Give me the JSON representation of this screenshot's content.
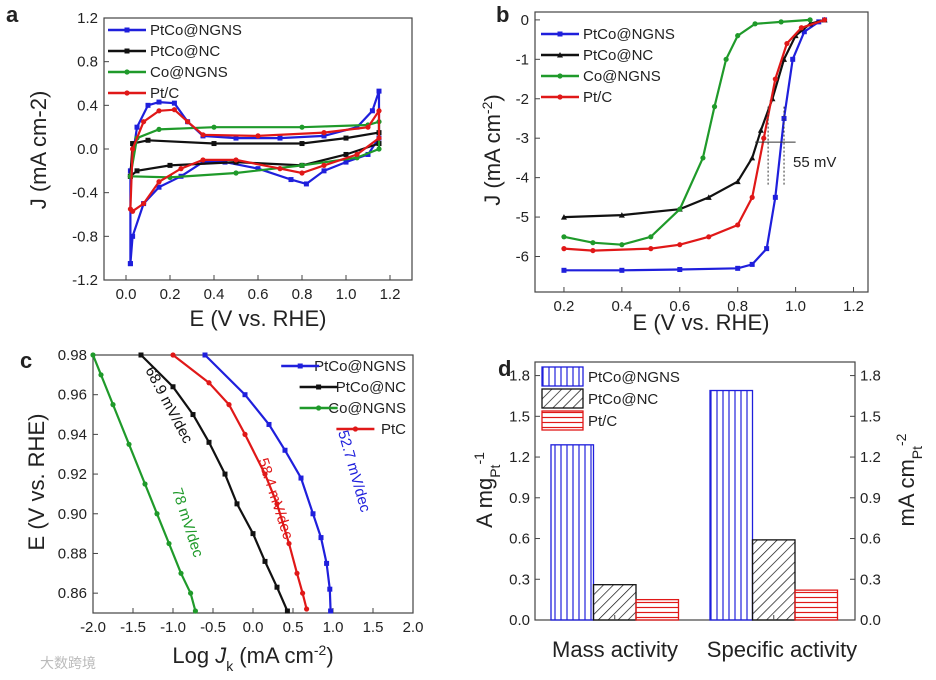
{
  "watermark": "大数跨境",
  "chart_data": [
    {
      "panel": "a",
      "type": "line",
      "xlabel": "E (V vs. RHE)",
      "ylabel": "J (mA cm-2)",
      "ylabel_parts": [
        "J (mA cm",
        "-2",
        ")"
      ],
      "xlim": [
        -0.1,
        1.3
      ],
      "ylim": [
        -1.2,
        1.2
      ],
      "xticks": [
        0.0,
        0.2,
        0.4,
        0.6,
        0.8,
        1.0,
        1.2
      ],
      "xtick_labels": [
        "0.0",
        "0.2",
        "0.4",
        "0.6",
        "0.8",
        "1.0",
        "1.2"
      ],
      "yticks": [
        -1.2,
        -0.8,
        -0.4,
        0.0,
        0.4,
        0.8,
        1.2
      ],
      "ytick_labels": [
        "-1.2",
        "-0.8",
        "-0.4",
        "0.0",
        "0.4",
        "0.8",
        "1.2"
      ],
      "legend": "top-left",
      "series": [
        {
          "name": "PtCo@NGNS",
          "color": "#1f1fdc",
          "marker": "square",
          "points": [
            [
              0.02,
              -1.05
            ],
            [
              0.02,
              -0.2
            ],
            [
              0.05,
              0.2
            ],
            [
              0.1,
              0.4
            ],
            [
              0.15,
              0.43
            ],
            [
              0.22,
              0.42
            ],
            [
              0.28,
              0.25
            ],
            [
              0.35,
              0.12
            ],
            [
              0.5,
              0.1
            ],
            [
              0.7,
              0.1
            ],
            [
              0.9,
              0.12
            ],
            [
              1.05,
              0.2
            ],
            [
              1.12,
              0.35
            ],
            [
              1.15,
              0.53
            ],
            [
              1.15,
              0.1
            ],
            [
              1.1,
              -0.05
            ],
            [
              1.0,
              -0.12
            ],
            [
              0.9,
              -0.2
            ],
            [
              0.82,
              -0.32
            ],
            [
              0.75,
              -0.28
            ],
            [
              0.6,
              -0.18
            ],
            [
              0.45,
              -0.12
            ],
            [
              0.35,
              -0.12
            ],
            [
              0.25,
              -0.25
            ],
            [
              0.15,
              -0.35
            ],
            [
              0.08,
              -0.5
            ],
            [
              0.03,
              -0.8
            ],
            [
              0.02,
              -1.05
            ]
          ]
        },
        {
          "name": "PtCo@NC",
          "color": "#111111",
          "marker": "square",
          "points": [
            [
              0.02,
              -0.25
            ],
            [
              0.03,
              0.05
            ],
            [
              0.1,
              0.08
            ],
            [
              0.4,
              0.05
            ],
            [
              0.8,
              0.05
            ],
            [
              1.0,
              0.1
            ],
            [
              1.15,
              0.15
            ],
            [
              1.15,
              0.05
            ],
            [
              1.0,
              -0.05
            ],
            [
              0.8,
              -0.15
            ],
            [
              0.5,
              -0.12
            ],
            [
              0.2,
              -0.15
            ],
            [
              0.05,
              -0.2
            ],
            [
              0.02,
              -0.25
            ]
          ]
        },
        {
          "name": "Co@NGNS",
          "color": "#1f9a2a",
          "marker": "circle",
          "points": [
            [
              0.02,
              -0.25
            ],
            [
              0.05,
              0.1
            ],
            [
              0.15,
              0.18
            ],
            [
              0.4,
              0.2
            ],
            [
              0.8,
              0.2
            ],
            [
              1.1,
              0.22
            ],
            [
              1.15,
              0.25
            ],
            [
              1.15,
              0.0
            ],
            [
              1.05,
              -0.08
            ],
            [
              0.8,
              -0.15
            ],
            [
              0.5,
              -0.22
            ],
            [
              0.2,
              -0.26
            ],
            [
              0.02,
              -0.25
            ]
          ]
        },
        {
          "name": "Pt/C",
          "color": "#e01818",
          "marker": "circle",
          "points": [
            [
              0.02,
              -0.55
            ],
            [
              0.03,
              0.0
            ],
            [
              0.08,
              0.25
            ],
            [
              0.15,
              0.35
            ],
            [
              0.22,
              0.36
            ],
            [
              0.28,
              0.25
            ],
            [
              0.35,
              0.13
            ],
            [
              0.6,
              0.12
            ],
            [
              0.9,
              0.15
            ],
            [
              1.1,
              0.2
            ],
            [
              1.15,
              0.35
            ],
            [
              1.15,
              0.1
            ],
            [
              1.05,
              -0.05
            ],
            [
              0.9,
              -0.15
            ],
            [
              0.8,
              -0.22
            ],
            [
              0.7,
              -0.18
            ],
            [
              0.5,
              -0.1
            ],
            [
              0.35,
              -0.1
            ],
            [
              0.25,
              -0.18
            ],
            [
              0.15,
              -0.3
            ],
            [
              0.08,
              -0.5
            ],
            [
              0.03,
              -0.57
            ]
          ]
        }
      ]
    },
    {
      "panel": "b",
      "type": "line",
      "xlabel": "E (V vs. RHE)",
      "ylabel_parts": [
        "J (mA cm",
        "-2",
        ")"
      ],
      "xlim": [
        0.1,
        1.25
      ],
      "ylim": [
        -6.9,
        0.2
      ],
      "xticks": [
        0.2,
        0.4,
        0.6,
        0.8,
        1.0,
        1.2
      ],
      "xtick_labels": [
        "0.2",
        "0.4",
        "0.6",
        "0.8",
        "1.0",
        "1.2"
      ],
      "yticks": [
        0,
        -1,
        -2,
        -3,
        -4,
        -5,
        -6
      ],
      "ytick_labels": [
        "0",
        "-1",
        "-2",
        "-3",
        "-4",
        "-5",
        "-6"
      ],
      "legend": "top-left",
      "annotation": "55 mV",
      "series": [
        {
          "name": "PtCo@NGNS",
          "color": "#1f1fdc",
          "marker": "square",
          "points": [
            [
              0.2,
              -6.35
            ],
            [
              0.4,
              -6.35
            ],
            [
              0.6,
              -6.33
            ],
            [
              0.8,
              -6.3
            ],
            [
              0.85,
              -6.2
            ],
            [
              0.9,
              -5.8
            ],
            [
              0.93,
              -4.5
            ],
            [
              0.96,
              -2.5
            ],
            [
              0.99,
              -1.0
            ],
            [
              1.03,
              -0.3
            ],
            [
              1.08,
              -0.05
            ],
            [
              1.1,
              0
            ]
          ]
        },
        {
          "name": "PtCo@NC",
          "color": "#111111",
          "marker": "triangle",
          "points": [
            [
              0.2,
              -5.0
            ],
            [
              0.4,
              -4.95
            ],
            [
              0.6,
              -4.8
            ],
            [
              0.7,
              -4.5
            ],
            [
              0.8,
              -4.1
            ],
            [
              0.85,
              -3.5
            ],
            [
              0.88,
              -2.8
            ],
            [
              0.92,
              -2.0
            ],
            [
              0.96,
              -1.0
            ],
            [
              1.0,
              -0.4
            ],
            [
              1.05,
              -0.1
            ],
            [
              1.1,
              0
            ]
          ]
        },
        {
          "name": "Co@NGNS",
          "color": "#1f9a2a",
          "marker": "circle",
          "points": [
            [
              0.2,
              -5.5
            ],
            [
              0.3,
              -5.65
            ],
            [
              0.4,
              -5.7
            ],
            [
              0.5,
              -5.5
            ],
            [
              0.6,
              -4.8
            ],
            [
              0.68,
              -3.5
            ],
            [
              0.72,
              -2.2
            ],
            [
              0.76,
              -1.0
            ],
            [
              0.8,
              -0.4
            ],
            [
              0.86,
              -0.1
            ],
            [
              0.95,
              -0.05
            ],
            [
              1.05,
              0
            ]
          ]
        },
        {
          "name": "Pt/C",
          "color": "#e01818",
          "marker": "circle",
          "points": [
            [
              0.2,
              -5.8
            ],
            [
              0.3,
              -5.85
            ],
            [
              0.5,
              -5.8
            ],
            [
              0.6,
              -5.7
            ],
            [
              0.7,
              -5.5
            ],
            [
              0.8,
              -5.2
            ],
            [
              0.85,
              -4.5
            ],
            [
              0.89,
              -3.0
            ],
            [
              0.93,
              -1.5
            ],
            [
              0.97,
              -0.6
            ],
            [
              1.02,
              -0.2
            ],
            [
              1.1,
              0
            ]
          ]
        }
      ]
    },
    {
      "panel": "c",
      "type": "line",
      "xlabel_parts": [
        "Log ",
        "J",
        "k",
        " (mA cm",
        "-2",
        ")"
      ],
      "ylabel": "E (V vs. RHE)",
      "xlim": [
        -2.0,
        2.0
      ],
      "ylim": [
        0.85,
        0.98
      ],
      "xticks": [
        -2.0,
        -1.5,
        -1.0,
        -0.5,
        0.0,
        0.5,
        1.0,
        1.5,
        2.0
      ],
      "xtick_labels": [
        "-2.0",
        "-1.5",
        "-1.0",
        "-0.5",
        "0.0",
        "0.5",
        "1.0",
        "1.5",
        "2.0"
      ],
      "yticks": [
        0.86,
        0.88,
        0.9,
        0.92,
        0.94,
        0.96,
        0.98
      ],
      "ytick_labels": [
        "0.86",
        "0.88",
        "0.90",
        "0.92",
        "0.94",
        "0.96",
        "0.98"
      ],
      "legend": "top-right",
      "series": [
        {
          "name": "PtCo@NGNS",
          "color": "#1f1fdc",
          "marker": "square",
          "slope_label": "52.7 mV/dec",
          "points": [
            [
              -0.6,
              0.98
            ],
            [
              -0.1,
              0.96
            ],
            [
              0.2,
              0.945
            ],
            [
              0.4,
              0.932
            ],
            [
              0.6,
              0.918
            ],
            [
              0.75,
              0.9
            ],
            [
              0.85,
              0.888
            ],
            [
              0.92,
              0.875
            ],
            [
              0.96,
              0.862
            ],
            [
              0.97,
              0.851
            ]
          ]
        },
        {
          "name": "PtCo@NC",
          "color": "#111111",
          "marker": "square",
          "slope_label": "68.9 mV/dec",
          "points": [
            [
              -1.4,
              0.98
            ],
            [
              -1.0,
              0.964
            ],
            [
              -0.75,
              0.95
            ],
            [
              -0.55,
              0.936
            ],
            [
              -0.35,
              0.92
            ],
            [
              -0.2,
              0.905
            ],
            [
              0.0,
              0.89
            ],
            [
              0.15,
              0.876
            ],
            [
              0.3,
              0.863
            ],
            [
              0.43,
              0.851
            ]
          ]
        },
        {
          "name": "Co@NGNS",
          "color": "#1f9a2a",
          "marker": "circle",
          "slope_label": "78 mV/dec",
          "points": [
            [
              -2.0,
              0.98
            ],
            [
              -1.9,
              0.97
            ],
            [
              -1.75,
              0.955
            ],
            [
              -1.55,
              0.935
            ],
            [
              -1.35,
              0.915
            ],
            [
              -1.2,
              0.9
            ],
            [
              -1.05,
              0.885
            ],
            [
              -0.9,
              0.87
            ],
            [
              -0.78,
              0.86
            ],
            [
              -0.72,
              0.851
            ]
          ]
        },
        {
          "name": "PtC",
          "color": "#e01818",
          "marker": "circle",
          "slope_label": "58.4 mV/dec",
          "points": [
            [
              -1.0,
              0.98
            ],
            [
              -0.55,
              0.966
            ],
            [
              -0.3,
              0.955
            ],
            [
              -0.1,
              0.94
            ],
            [
              0.15,
              0.92
            ],
            [
              0.3,
              0.905
            ],
            [
              0.45,
              0.885
            ],
            [
              0.55,
              0.87
            ],
            [
              0.62,
              0.86
            ],
            [
              0.67,
              0.852
            ]
          ]
        }
      ]
    },
    {
      "panel": "d",
      "type": "bar",
      "categories": [
        "Mass activity",
        "Specific activity"
      ],
      "ylabel_left_parts": [
        "A mg",
        "Pt",
        "-1"
      ],
      "ylabel_right_parts": [
        "mA cm",
        "Pt",
        "-2"
      ],
      "ylim": [
        0,
        1.9
      ],
      "yticks": [
        0.0,
        0.3,
        0.6,
        0.9,
        1.2,
        1.5,
        1.8
      ],
      "ytick_labels": [
        "0.0",
        "0.3",
        "0.6",
        "0.9",
        "1.2",
        "1.5",
        "1.8"
      ],
      "legend": "top-left",
      "series": [
        {
          "name": "PtCo@NGNS",
          "color": "#1f1fdc",
          "pattern": "vertical",
          "values": [
            1.29,
            1.69
          ]
        },
        {
          "name": "PtCo@NC",
          "color": "#111111",
          "pattern": "diagonal",
          "values": [
            0.26,
            0.59
          ]
        },
        {
          "name": "Pt/C",
          "color": "#e01818",
          "pattern": "horizontal",
          "values": [
            0.15,
            0.22
          ]
        }
      ]
    }
  ]
}
